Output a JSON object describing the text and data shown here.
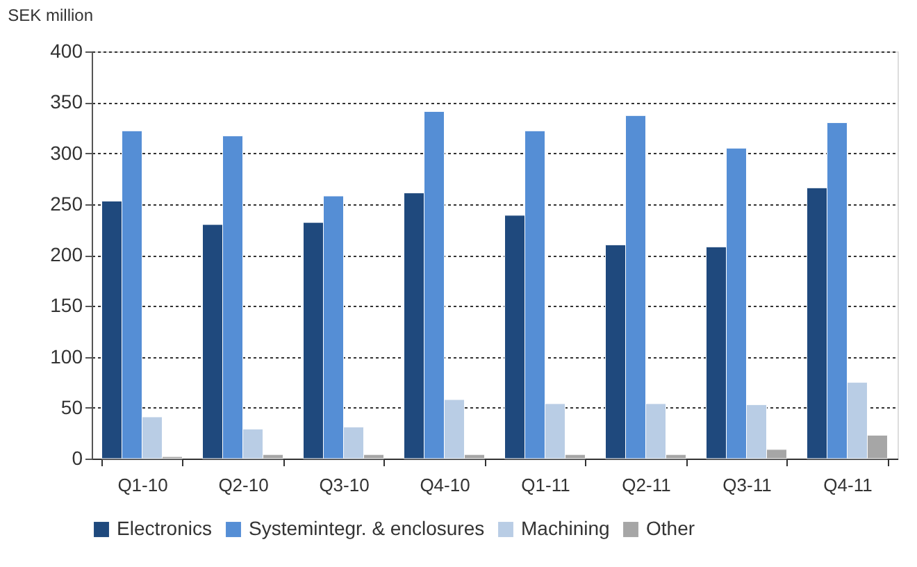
{
  "chart_data": {
    "type": "bar",
    "ylabel": "SEK million",
    "categories": [
      "Q1-10",
      "Q2-10",
      "Q3-10",
      "Q4-10",
      "Q1-11",
      "Q2-11",
      "Q3-11",
      "Q4-11"
    ],
    "series": [
      {
        "name": "Electronics",
        "color": "#1f497d",
        "values": [
          253,
          230,
          232,
          261,
          239,
          210,
          208,
          266
        ]
      },
      {
        "name": "Systemintegr. & enclosures",
        "color": "#558ed5",
        "values": [
          322,
          317,
          258,
          341,
          322,
          337,
          305,
          330
        ]
      },
      {
        "name": "Machining",
        "color": "#b9cde5",
        "values": [
          41,
          29,
          31,
          58,
          54,
          54,
          53,
          75
        ]
      },
      {
        "name": "Other",
        "color": "#a6a6a6",
        "values": [
          2,
          4,
          4,
          4,
          4,
          4,
          9,
          23
        ]
      }
    ],
    "ylim": [
      0,
      400
    ],
    "yticks": [
      0,
      50,
      100,
      150,
      200,
      250,
      300,
      350,
      400
    ],
    "grid": "y",
    "legend": "bottom"
  }
}
